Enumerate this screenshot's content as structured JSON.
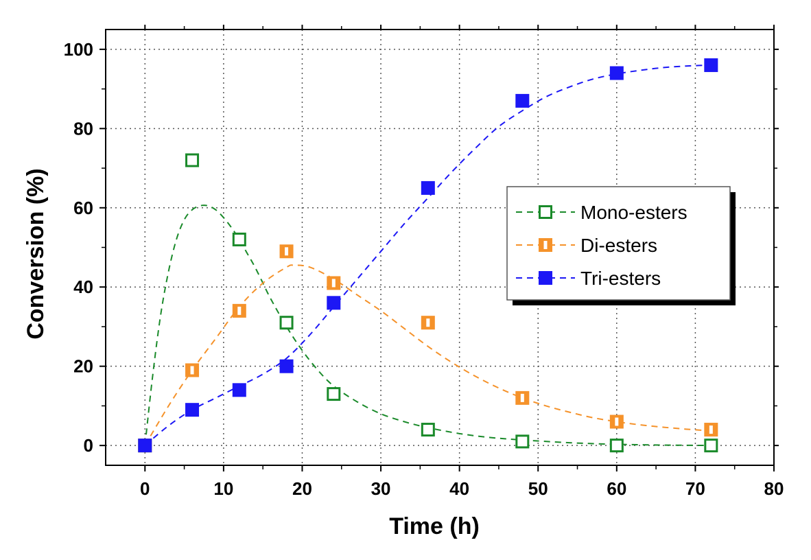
{
  "chart_data": {
    "type": "scatter",
    "title": "",
    "xlabel": "Time (h)",
    "ylabel": "Conversion (%)",
    "xlim": [
      -5,
      80
    ],
    "ylim": [
      -5,
      105
    ],
    "xticks": [
      0,
      10,
      20,
      30,
      40,
      50,
      60,
      70,
      80
    ],
    "yticks": [
      0,
      20,
      40,
      60,
      80,
      100
    ],
    "grid": true,
    "legend_position": "center-right",
    "series": [
      {
        "name": "Mono-esters",
        "color": "#1a8a2a",
        "marker": "open-square",
        "x": [
          0,
          6,
          12,
          18,
          24,
          36,
          48,
          60,
          72
        ],
        "values": [
          0,
          72,
          52,
          31,
          13,
          4,
          1,
          0,
          0
        ],
        "fit_x": [
          0,
          1,
          2,
          3,
          4,
          5,
          6,
          7,
          8,
          9,
          10,
          11,
          12,
          13,
          14,
          15,
          16,
          18,
          20,
          22,
          24,
          27,
          30,
          33,
          36,
          40,
          44,
          48,
          54,
          60,
          66,
          72
        ],
        "fit_y": [
          0,
          18,
          33,
          44,
          52,
          57,
          59.5,
          60.5,
          60.5,
          59.5,
          57.5,
          55,
          52,
          48.5,
          45,
          41,
          37,
          30,
          24,
          19,
          15,
          11,
          8,
          6,
          4.5,
          3,
          2,
          1.4,
          0.7,
          0.3,
          0.1,
          0
        ]
      },
      {
        "name": "Di-esters",
        "color": "#f5922a",
        "marker": "half-square",
        "x": [
          0,
          6,
          12,
          18,
          24,
          36,
          48,
          60,
          72
        ],
        "values": [
          0,
          19,
          34,
          49,
          41,
          31,
          12,
          6,
          4
        ],
        "fit_x": [
          0,
          3,
          6,
          9,
          12,
          15,
          18,
          19,
          21,
          24,
          27,
          30,
          33,
          36,
          39,
          42,
          45,
          48,
          51,
          54,
          57,
          60,
          63,
          66,
          69,
          72
        ],
        "fit_y": [
          0,
          10,
          19,
          27,
          35,
          41,
          45,
          45.5,
          45,
          42,
          38,
          34,
          29.5,
          25,
          21,
          17.5,
          14.5,
          12,
          10,
          8.4,
          7,
          6,
          5.2,
          4.6,
          4.1,
          3.7
        ]
      },
      {
        "name": "Tri-esters",
        "color": "#1c17f5",
        "marker": "filled-square",
        "x": [
          0,
          6,
          12,
          18,
          24,
          36,
          48,
          60,
          72
        ],
        "values": [
          0,
          9,
          14,
          20,
          36,
          65,
          87,
          94,
          96
        ],
        "fit_x": [
          0,
          3,
          6,
          9,
          12,
          15,
          18,
          21,
          24,
          27,
          30,
          33,
          36,
          39,
          42,
          45,
          48,
          51,
          54,
          57,
          60,
          63,
          66,
          69,
          72
        ],
        "fit_y": [
          0,
          5,
          9,
          12,
          15,
          18,
          22,
          28,
          35,
          42,
          49,
          56,
          62.5,
          69,
          75,
          80.5,
          84.5,
          88,
          90.5,
          92.5,
          93.8,
          94.7,
          95.4,
          95.8,
          96
        ]
      }
    ]
  }
}
